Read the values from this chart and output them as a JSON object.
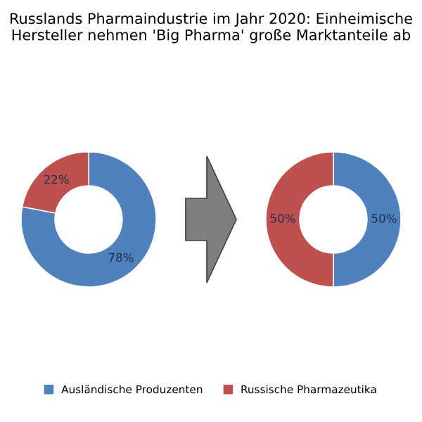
{
  "chart_data": [
    {
      "type": "donut",
      "title": "Russlands Pharmaindustrie im Jahr 2020: Einheimische Hersteller nehmen 'Big Pharma' große Marktanteile ab",
      "categories": [
        "Ausländische Produzenten",
        "Russische Pharmazeutika"
      ],
      "values": [
        78,
        22
      ],
      "value_labels": [
        "78%",
        "22%"
      ],
      "colors": [
        "#4f81bd",
        "#c0504d"
      ],
      "legend": "bottom"
    },
    {
      "type": "donut",
      "categories": [
        null,
        null
      ],
      "values": [
        50,
        50
      ],
      "value_labels": [
        "50%",
        "50%"
      ],
      "colors": [
        "#4f81bd",
        "#c0504d"
      ]
    }
  ]
}
